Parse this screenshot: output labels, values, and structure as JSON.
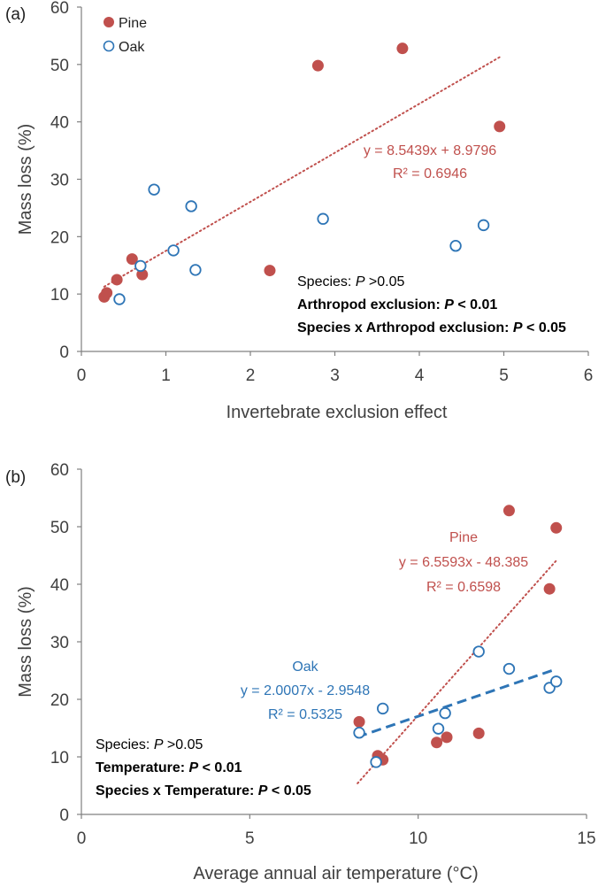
{
  "colors": {
    "pine": "#c0504d",
    "oak": "#2e75b6",
    "axis": "#808080",
    "text": "#404040"
  },
  "chart_data": [
    {
      "type": "scatter",
      "panel_label": "(a)",
      "xlabel": "Invertebrate exclusion effect",
      "ylabel": "Mass loss (%)",
      "xlim": [
        0,
        6
      ],
      "ylim": [
        0,
        60
      ],
      "xticks": [
        "0",
        "1",
        "2",
        "3",
        "4",
        "5",
        "6"
      ],
      "yticks": [
        "0",
        "10",
        "20",
        "30",
        "40",
        "50",
        "60"
      ],
      "legend": {
        "position": "top-left",
        "entries": [
          "Pine",
          "Oak"
        ]
      },
      "series": [
        {
          "name": "Pine",
          "marker": "filled-circle",
          "x": [
            0.27,
            0.3,
            0.42,
            0.6,
            0.72,
            2.23,
            2.8,
            3.8,
            4.95
          ],
          "y": [
            9.5,
            10.2,
            12.5,
            16.1,
            13.4,
            14.1,
            49.8,
            52.8,
            39.2
          ]
        },
        {
          "name": "Oak",
          "marker": "open-circle",
          "x": [
            0.45,
            0.7,
            0.86,
            1.09,
            1.3,
            1.35,
            2.86,
            4.43,
            4.76
          ],
          "y": [
            9.1,
            14.9,
            28.2,
            17.6,
            25.3,
            14.2,
            23.1,
            18.4,
            22.0
          ]
        }
      ],
      "trendlines": [
        {
          "series": "Pine",
          "style": "dotted",
          "slope": 8.5439,
          "intercept": 8.9796,
          "x_range": [
            0.27,
            4.95
          ],
          "label_lines": [
            "y = 8.5439x + 8.9796",
            "R² = 0.6946"
          ]
        }
      ],
      "annotations": [
        {
          "parts": [
            {
              "t": "Species: ",
              "b": false,
              "i": false
            },
            {
              "t": "P",
              "b": false,
              "i": true
            },
            {
              "t": " >0.05",
              "b": false,
              "i": false
            }
          ]
        },
        {
          "parts": [
            {
              "t": "Arthropod exclusion: ",
              "b": true,
              "i": false
            },
            {
              "t": "P",
              "b": true,
              "i": true
            },
            {
              "t": " < 0.01",
              "b": true,
              "i": false
            }
          ]
        },
        {
          "parts": [
            {
              "t": "Species x Arthropod exclusion: ",
              "b": true,
              "i": false
            },
            {
              "t": "P",
              "b": true,
              "i": true
            },
            {
              "t": " < 0.05",
              "b": true,
              "i": false
            }
          ]
        }
      ]
    },
    {
      "type": "scatter",
      "panel_label": "(b)",
      "xlabel": "Average annual air temperature (°C)",
      "ylabel": "Mass loss (%)",
      "xlim": [
        0,
        15
      ],
      "ylim": [
        0,
        60
      ],
      "xticks": [
        "0",
        "5",
        "10",
        "15"
      ],
      "yticks": [
        "0",
        "10",
        "20",
        "30",
        "40",
        "50",
        "60"
      ],
      "series": [
        {
          "name": "Pine",
          "marker": "filled-circle",
          "x": [
            8.25,
            8.8,
            8.95,
            10.55,
            10.85,
            11.8,
            12.7,
            13.9,
            14.1
          ],
          "y": [
            16.1,
            10.2,
            9.5,
            12.5,
            13.4,
            14.1,
            52.8,
            39.2,
            49.8
          ]
        },
        {
          "name": "Oak",
          "marker": "open-circle",
          "x": [
            8.25,
            8.75,
            8.95,
            10.6,
            10.8,
            11.8,
            12.7,
            13.9,
            14.1
          ],
          "y": [
            14.2,
            9.1,
            18.4,
            14.9,
            17.6,
            28.3,
            25.3,
            22.0,
            23.1
          ]
        }
      ],
      "trendlines": [
        {
          "series": "Pine",
          "style": "dotted",
          "slope": 6.5593,
          "intercept": -48.385,
          "x_range": [
            8.2,
            14.1
          ],
          "label_lines": [
            "Pine",
            "y = 6.5593x - 48.385",
            "R² = 0.6598"
          ]
        },
        {
          "series": "Oak",
          "style": "dashed",
          "slope": 2.0007,
          "intercept": -2.9548,
          "x_range": [
            8.2,
            14.1
          ],
          "label_lines": [
            "Oak",
            "y = 2.0007x - 2.9548",
            "R² = 0.5325"
          ]
        }
      ],
      "annotations": [
        {
          "parts": [
            {
              "t": "Species: ",
              "b": false,
              "i": false
            },
            {
              "t": "P",
              "b": false,
              "i": true
            },
            {
              "t": " >0.05",
              "b": false,
              "i": false
            }
          ]
        },
        {
          "parts": [
            {
              "t": "Temperature: ",
              "b": true,
              "i": false
            },
            {
              "t": "P",
              "b": true,
              "i": true
            },
            {
              "t": " < 0.01",
              "b": true,
              "i": false
            }
          ]
        },
        {
          "parts": [
            {
              "t": "Species x Temperature: ",
              "b": true,
              "i": false
            },
            {
              "t": "P",
              "b": true,
              "i": true
            },
            {
              "t": " < 0.05",
              "b": true,
              "i": false
            }
          ]
        }
      ]
    }
  ]
}
